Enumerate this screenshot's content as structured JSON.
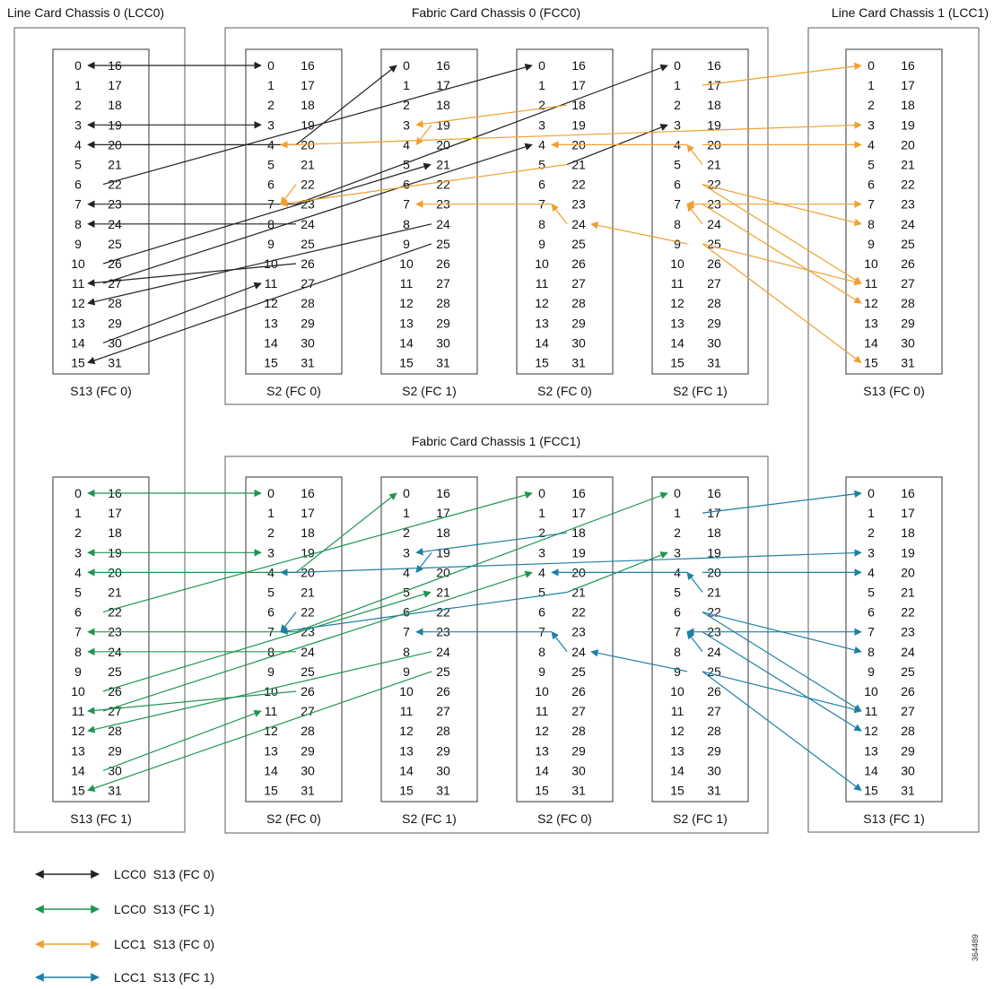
{
  "chassis": [
    {
      "id": "lcc0",
      "title": "Line Card Chassis 0 (LCC0)"
    },
    {
      "id": "fcc0",
      "title": "Fabric Card Chassis 0 (FCC0)"
    },
    {
      "id": "lcc1",
      "title": "Line Card Chassis 1 (LCC1)"
    },
    {
      "id": "fcc1",
      "title": "Fabric Card Chassis 1 (FCC1)"
    }
  ],
  "cards": [
    {
      "id": "lcc0-top",
      "label": "S13 (FC 0)"
    },
    {
      "id": "fcc0-a",
      "label": "S2 (FC 0)"
    },
    {
      "id": "fcc0-b",
      "label": "S2 (FC 1)"
    },
    {
      "id": "fcc0-c",
      "label": "S2 (FC 0)"
    },
    {
      "id": "fcc0-d",
      "label": "S2 (FC 1)"
    },
    {
      "id": "lcc1-top",
      "label": "S13 (FC 0)"
    },
    {
      "id": "lcc0-bot",
      "label": "S13 (FC 1)"
    },
    {
      "id": "fcc1-a",
      "label": "S2 (FC 0)"
    },
    {
      "id": "fcc1-b",
      "label": "S2 (FC 1)"
    },
    {
      "id": "fcc1-c",
      "label": "S2 (FC 0)"
    },
    {
      "id": "fcc1-d",
      "label": "S2 (FC 1)"
    },
    {
      "id": "lcc1-bot",
      "label": "S13 (FC 1)"
    }
  ],
  "ports": {
    "left": [
      "0",
      "1",
      "2",
      "3",
      "4",
      "5",
      "6",
      "7",
      "8",
      "9",
      "10",
      "11",
      "12",
      "13",
      "14",
      "15"
    ],
    "right": [
      "16",
      "17",
      "18",
      "19",
      "20",
      "21",
      "22",
      "23",
      "24",
      "25",
      "26",
      "27",
      "28",
      "29",
      "30",
      "31"
    ]
  },
  "legend": [
    {
      "key": "black",
      "label": "LCC0  S13 (FC 0)",
      "color": "#222222"
    },
    {
      "key": "green",
      "label": "LCC0  S13 (FC 1)",
      "color": "#1f9552"
    },
    {
      "key": "orange",
      "label": "LCC1  S13 (FC 0)",
      "color": "#f0a030"
    },
    {
      "key": "blue",
      "label": "LCC1  S13 (FC 1)",
      "color": "#1f7fa6"
    }
  ],
  "figure_id": "364489",
  "arrows": {
    "top_black": [
      [
        "lcc0-top",
        "R",
        0,
        "lcc0-top",
        "L",
        0
      ],
      [
        "lcc0-top",
        "R",
        0,
        "fcc0-a",
        "L",
        0
      ],
      [
        "lcc0-top",
        "R",
        3,
        "lcc0-top",
        "L",
        3
      ],
      [
        "lcc0-top",
        "R",
        3,
        "fcc0-a",
        "L",
        3
      ],
      [
        "fcc0-a",
        "R",
        4,
        "lcc0-top",
        "L",
        4
      ],
      [
        "fcc0-a",
        "R",
        4,
        "fcc0-b",
        "L",
        0
      ],
      [
        "lcc0-top",
        "R",
        6,
        "fcc0-c",
        "L",
        0
      ],
      [
        "fcc0-a",
        "R",
        7,
        "lcc0-top",
        "L",
        7
      ],
      [
        "fcc0-a",
        "R",
        7,
        "fcc0-d",
        "L",
        0
      ],
      [
        "fcc0-a",
        "R",
        8,
        "lcc0-top",
        "L",
        8
      ],
      [
        "lcc0-top",
        "R",
        10,
        "fcc0-b",
        "R",
        5
      ],
      [
        "fcc0-a",
        "R",
        10,
        "lcc0-top",
        "L",
        11
      ],
      [
        "lcc0-top",
        "R",
        11,
        "fcc0-c",
        "L",
        4
      ],
      [
        "fcc0-b",
        "R",
        8,
        "lcc0-top",
        "L",
        12
      ],
      [
        "lcc0-top",
        "R",
        14,
        "fcc0-a",
        "L",
        11
      ],
      [
        "fcc0-b",
        "R",
        9,
        "lcc0-top",
        "L",
        15
      ],
      [
        "fcc0-c",
        "R",
        5,
        "fcc0-d",
        "L",
        3
      ]
    ],
    "top_orange": [
      [
        "fcc0-a",
        "R",
        4,
        "fcc0-a",
        "L",
        4
      ],
      [
        "fcc0-a",
        "R",
        4,
        "lcc1-top",
        "L",
        3
      ],
      [
        "fcc0-a",
        "R",
        6,
        "fcc0-a",
        "L",
        7
      ],
      [
        "fcc0-c",
        "R",
        5,
        "fcc0-a",
        "L",
        7
      ],
      [
        "fcc0-b",
        "R",
        3,
        "fcc0-b",
        "L",
        4
      ],
      [
        "fcc0-d",
        "R",
        1,
        "lcc1-top",
        "L",
        0
      ],
      [
        "fcc0-c",
        "R",
        2,
        "fcc0-b",
        "L",
        3
      ],
      [
        "fcc0-d",
        "L",
        4,
        "fcc0-c",
        "L",
        4
      ],
      [
        "fcc0-c",
        "L",
        7,
        "fcc0-b",
        "L",
        7
      ],
      [
        "fcc0-c",
        "R",
        8,
        "fcc0-c",
        "L",
        7
      ],
      [
        "fcc0-d",
        "R",
        4,
        "lcc1-top",
        "L",
        4
      ],
      [
        "fcc0-d",
        "R",
        5,
        "fcc0-d",
        "L",
        4
      ],
      [
        "fcc0-d",
        "R",
        6,
        "lcc1-top",
        "L",
        8
      ],
      [
        "fcc0-d",
        "R",
        6,
        "lcc1-top",
        "L",
        11
      ],
      [
        "fcc0-d",
        "R",
        7,
        "fcc0-d",
        "L",
        7
      ],
      [
        "fcc0-d",
        "R",
        7,
        "lcc1-top",
        "L",
        7
      ],
      [
        "fcc0-d",
        "R",
        7,
        "lcc1-top",
        "L",
        12
      ],
      [
        "fcc0-d",
        "R",
        8,
        "fcc0-d",
        "L",
        7
      ],
      [
        "fcc0-d",
        "R",
        9,
        "lcc1-top",
        "L",
        11
      ],
      [
        "fcc0-d",
        "R",
        9,
        "lcc1-top",
        "L",
        15
      ],
      [
        "fcc0-d",
        "L",
        9,
        "fcc0-c",
        "R",
        8
      ]
    ],
    "bot_green": [
      [
        "lcc0-bot",
        "R",
        0,
        "lcc0-bot",
        "L",
        0
      ],
      [
        "lcc0-bot",
        "R",
        0,
        "fcc1-a",
        "L",
        0
      ],
      [
        "lcc0-bot",
        "R",
        3,
        "lcc0-bot",
        "L",
        3
      ],
      [
        "lcc0-bot",
        "R",
        3,
        "fcc1-a",
        "L",
        3
      ],
      [
        "fcc1-a",
        "R",
        4,
        "lcc0-bot",
        "L",
        4
      ],
      [
        "fcc1-a",
        "R",
        4,
        "fcc1-b",
        "L",
        0
      ],
      [
        "lcc0-bot",
        "R",
        6,
        "fcc1-c",
        "L",
        0
      ],
      [
        "fcc1-a",
        "R",
        7,
        "lcc0-bot",
        "L",
        7
      ],
      [
        "fcc1-a",
        "R",
        7,
        "fcc1-d",
        "L",
        0
      ],
      [
        "fcc1-a",
        "R",
        8,
        "lcc0-bot",
        "L",
        8
      ],
      [
        "lcc0-bot",
        "R",
        10,
        "fcc1-b",
        "R",
        5
      ],
      [
        "fcc1-a",
        "R",
        10,
        "lcc0-bot",
        "L",
        11
      ],
      [
        "lcc0-bot",
        "R",
        11,
        "fcc1-c",
        "L",
        4
      ],
      [
        "fcc1-b",
        "R",
        8,
        "lcc0-bot",
        "L",
        12
      ],
      [
        "lcc0-bot",
        "R",
        14,
        "fcc1-a",
        "L",
        11
      ],
      [
        "fcc1-b",
        "R",
        9,
        "lcc0-bot",
        "L",
        15
      ],
      [
        "fcc1-c",
        "R",
        5,
        "fcc1-d",
        "L",
        3
      ]
    ],
    "bot_blue": [
      [
        "fcc1-a",
        "R",
        4,
        "fcc1-a",
        "L",
        4
      ],
      [
        "fcc1-a",
        "R",
        4,
        "lcc1-bot",
        "L",
        3
      ],
      [
        "fcc1-a",
        "R",
        6,
        "fcc1-a",
        "L",
        7
      ],
      [
        "fcc1-c",
        "R",
        5,
        "fcc1-a",
        "L",
        7
      ],
      [
        "fcc1-b",
        "R",
        3,
        "fcc1-b",
        "L",
        4
      ],
      [
        "fcc1-d",
        "R",
        1,
        "lcc1-bot",
        "L",
        0
      ],
      [
        "fcc1-c",
        "R",
        2,
        "fcc1-b",
        "L",
        3
      ],
      [
        "fcc1-d",
        "L",
        4,
        "fcc1-c",
        "L",
        4
      ],
      [
        "fcc1-c",
        "L",
        7,
        "fcc1-b",
        "L",
        7
      ],
      [
        "fcc1-c",
        "R",
        8,
        "fcc1-c",
        "L",
        7
      ],
      [
        "fcc1-d",
        "R",
        4,
        "lcc1-bot",
        "L",
        4
      ],
      [
        "fcc1-d",
        "R",
        5,
        "fcc1-d",
        "L",
        4
      ],
      [
        "fcc1-d",
        "R",
        6,
        "lcc1-bot",
        "L",
        8
      ],
      [
        "fcc1-d",
        "R",
        6,
        "lcc1-bot",
        "L",
        11
      ],
      [
        "fcc1-d",
        "R",
        7,
        "fcc1-d",
        "L",
        7
      ],
      [
        "fcc1-d",
        "R",
        7,
        "lcc1-bot",
        "L",
        7
      ],
      [
        "fcc1-d",
        "R",
        7,
        "lcc1-bot",
        "L",
        12
      ],
      [
        "fcc1-d",
        "R",
        8,
        "fcc1-d",
        "L",
        7
      ],
      [
        "fcc1-d",
        "R",
        9,
        "lcc1-bot",
        "L",
        11
      ],
      [
        "fcc1-d",
        "R",
        9,
        "lcc1-bot",
        "L",
        15
      ],
      [
        "fcc1-d",
        "L",
        9,
        "fcc1-c",
        "R",
        8
      ]
    ]
  }
}
